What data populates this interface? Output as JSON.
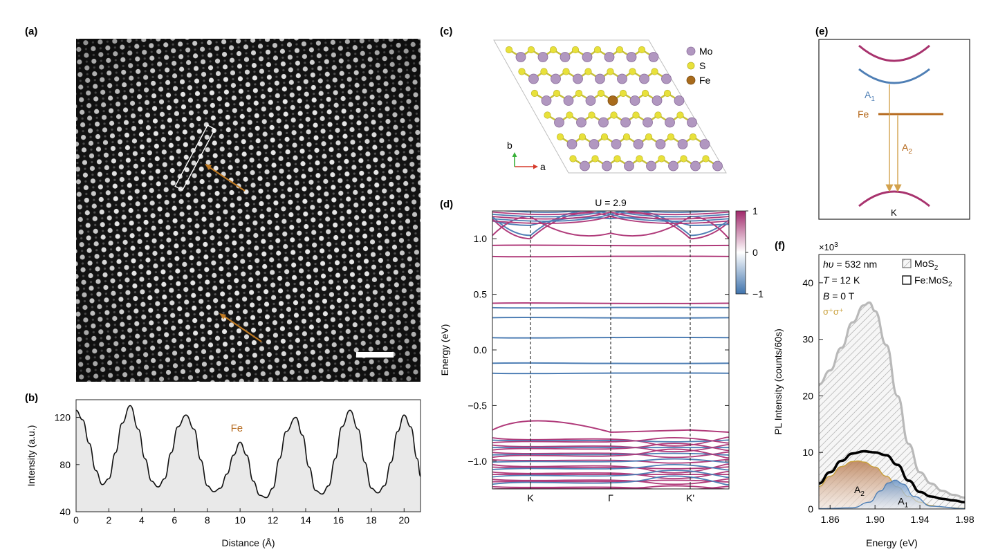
{
  "panels": {
    "a": {
      "label": "(a)"
    },
    "b": {
      "label": "(b)"
    },
    "c": {
      "label": "(c)"
    },
    "d": {
      "label": "(d)"
    },
    "e": {
      "label": "(e)"
    },
    "f": {
      "label": "(f)"
    }
  },
  "colors": {
    "mo": "#b197c0",
    "s": "#e8e13a",
    "fe": "#a86b1c",
    "arrow": "#c07a22",
    "band_up": "#b03a7a",
    "band_down": "#4f7fb5",
    "level_fe": "#b5691c",
    "pl_mos2": "#b9b9b9",
    "pl_fe": "#000000",
    "a2_fill": "#c68f62",
    "a1_fill": "#7ea2cc"
  },
  "stem_image": {
    "description_icon": "stem-lattice-image",
    "fe_arrows": 2
  },
  "crystal": {
    "legend": [
      {
        "name": "Mo",
        "color": "#b197c0"
      },
      {
        "name": "S",
        "color": "#e8e13a"
      },
      {
        "name": "Fe",
        "color": "#a86b1c"
      }
    ],
    "axis_a": "a",
    "axis_b": "b"
  },
  "levels": {
    "A1": "A",
    "A1_sub": "1",
    "A2": "A",
    "A2_sub": "2",
    "fe_label": "Fe",
    "k_label": "K"
  },
  "pl_legend": {
    "hv_prefix": "h",
    "hv_symbol": "υ",
    "hv_value": " = 532 nm",
    "T_prefix": "T",
    "T_value": " = 12 K",
    "B_prefix": "B",
    "B_value": " = 0 T",
    "pol": "σ⁺σ⁺",
    "series1": "MoS",
    "series1_sub": "2",
    "series2": "Fe:MoS",
    "series2_sub": "2",
    "multiplier": "×10",
    "multiplier_exp": "3",
    "peak_A2": "A",
    "peak_A2_sub": "2",
    "peak_A1": "A",
    "peak_A1_sub": "1"
  },
  "chart_data": [
    {
      "id": "b",
      "type": "area",
      "xlabel": "Distance (Å)",
      "ylabel": "Intensity (a.u.)",
      "xlim": [
        0,
        21
      ],
      "ylim": [
        40,
        135
      ],
      "xticks": [
        "0",
        "2",
        "4",
        "6",
        "8",
        "10",
        "12",
        "14",
        "16",
        "18",
        "20"
      ],
      "yticks": [
        "40",
        "80",
        "120"
      ],
      "annotation": "Fe",
      "series": [
        {
          "x": [
            0,
            0.4,
            0.8,
            1.2,
            1.6,
            2.0,
            2.4,
            2.8,
            3.3,
            3.8,
            4.2,
            4.6,
            5.0,
            5.4,
            5.8,
            6.2,
            6.7,
            7.2,
            7.6,
            8.0,
            8.4,
            8.8,
            9.2,
            9.6,
            10.0,
            10.4,
            10.8,
            11.2,
            11.6,
            12.0,
            12.4,
            12.8,
            13.4,
            13.8,
            14.2,
            14.6,
            15.0,
            15.4,
            15.8,
            16.2,
            16.7,
            17.2,
            17.6,
            18.0,
            18.4,
            18.8,
            19.2,
            19.6,
            20.0,
            20.4,
            20.8,
            21.0
          ],
          "y": [
            126,
            118,
            98,
            75,
            63,
            68,
            90,
            115,
            130,
            110,
            85,
            66,
            61,
            68,
            90,
            112,
            122,
            110,
            84,
            62,
            57,
            60,
            72,
            88,
            99,
            88,
            66,
            54,
            52,
            60,
            85,
            108,
            120,
            105,
            78,
            58,
            55,
            62,
            85,
            112,
            126,
            110,
            82,
            60,
            56,
            62,
            82,
            108,
            122,
            112,
            85,
            70
          ]
        }
      ]
    },
    {
      "id": "d",
      "type": "line",
      "title": "U = 2.9",
      "ylabel": "Energy (eV)",
      "ylim": [
        -1.25,
        1.25
      ],
      "yticks": [
        "-1.0",
        "-0.5",
        "0.0",
        "0.5",
        "1.0"
      ],
      "xticks": [
        "K",
        "Γ",
        "K'"
      ],
      "colorbar_ticks": [
        "1",
        "0",
        "-1"
      ],
      "flat_bands": [
        {
          "e": 0.94,
          "spin": "up"
        },
        {
          "e": 0.84,
          "spin": "up"
        },
        {
          "e": 0.42,
          "spin": "up"
        },
        {
          "e": 0.38,
          "spin": "down"
        },
        {
          "e": 0.29,
          "spin": "down"
        },
        {
          "e": 0.11,
          "spin": "down"
        },
        {
          "e": -0.12,
          "spin": "down"
        },
        {
          "e": -0.21,
          "spin": "down"
        }
      ],
      "dispersive_upper": [
        {
          "k": 1.0,
          "g": 1.2,
          "spin": "up"
        },
        {
          "k": 1.03,
          "g": 1.22,
          "spin": "down"
        },
        {
          "k": 1.12,
          "g": 1.18,
          "spin": "down"
        },
        {
          "k": 1.2,
          "g": 1.05,
          "spin": "up"
        }
      ],
      "valence_top": [
        {
          "k": -0.62,
          "g": -0.74,
          "spin": "up"
        }
      ]
    },
    {
      "id": "f",
      "type": "line",
      "xlabel": "Energy (eV)",
      "ylabel": "PL Intensity (counts/60s)",
      "xlim": [
        1.85,
        1.98
      ],
      "ylim": [
        0,
        45
      ],
      "xticks": [
        "1.86",
        "1.90",
        "1.94",
        "1.98"
      ],
      "yticks": [
        "0",
        "10",
        "20",
        "30",
        "40"
      ],
      "series": [
        {
          "name": "MoS2",
          "x": [
            1.85,
            1.86,
            1.87,
            1.88,
            1.89,
            1.895,
            1.9,
            1.91,
            1.92,
            1.93,
            1.94,
            1.95,
            1.96,
            1.97,
            1.98
          ],
          "y": [
            22,
            24.5,
            28.5,
            33,
            36,
            36.5,
            35,
            29,
            20,
            11.5,
            6.5,
            4.5,
            3.2,
            2.5,
            2.0
          ]
        },
        {
          "name": "Fe:MoS2",
          "x": [
            1.85,
            1.86,
            1.87,
            1.88,
            1.89,
            1.9,
            1.91,
            1.92,
            1.93,
            1.94,
            1.95,
            1.96,
            1.97,
            1.98
          ],
          "y": [
            4.5,
            6.5,
            8.5,
            9.8,
            10.2,
            10.0,
            9.5,
            7.8,
            5.0,
            3.0,
            2.2,
            1.8,
            1.5,
            1.2
          ]
        },
        {
          "name": "A2",
          "x": [
            1.85,
            1.86,
            1.87,
            1.88,
            1.885,
            1.89,
            1.9,
            1.91,
            1.92,
            1.93,
            1.94,
            1.95,
            1.96,
            1.98
          ],
          "y": [
            4.0,
            5.8,
            7.5,
            8.4,
            8.5,
            8.3,
            7.4,
            5.8,
            3.9,
            2.2,
            1.2,
            0.6,
            0.3,
            0.1
          ]
        },
        {
          "name": "A1",
          "x": [
            1.85,
            1.88,
            1.895,
            1.905,
            1.912,
            1.918,
            1.925,
            1.935,
            1.95,
            1.98
          ],
          "y": [
            0.05,
            0.2,
            1.2,
            3.2,
            4.6,
            5.1,
            4.4,
            2.2,
            0.5,
            0.05
          ]
        }
      ]
    }
  ]
}
